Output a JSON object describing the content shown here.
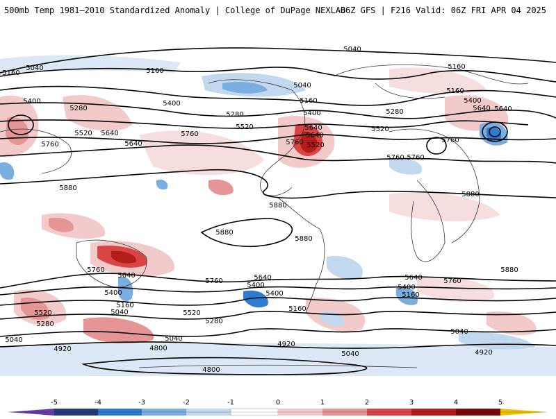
{
  "header": {
    "title_left": "500mb Temp 1981–2010 Standardized Anomaly | College of DuPage NEXLAB",
    "title_right": "06Z GFS | F216 Valid: 06Z FRI APR 04 2025"
  },
  "map": {
    "type": "global weather map",
    "field": "500mb temperature standardized anomaly (shaded)",
    "contours_field": "500mb geopotential height (black contours)",
    "contour_labels": [
      "5040",
      "5160",
      "5040",
      "5160",
      "5040",
      "5160",
      "5160",
      "5400",
      "5280",
      "5400",
      "5280",
      "5520",
      "5400",
      "5520",
      "5520",
      "5640",
      "5640",
      "5760",
      "5760",
      "5640",
      "5760",
      "5880",
      "5880",
      "5280",
      "5400",
      "5640",
      "5160",
      "5520",
      "5640",
      "5760",
      "5760",
      "5880",
      "5880",
      "5880",
      "5880",
      "5760",
      "5640",
      "5400",
      "5400",
      "5160",
      "5040",
      "5520",
      "5280",
      "5040",
      "5760",
      "5640",
      "5400",
      "5160",
      "5520",
      "5280",
      "5040",
      "4920",
      "4920",
      "4800",
      "4800",
      "5640",
      "5400",
      "5160",
      "5760",
      "5040",
      "4920",
      "5040",
      "5640",
      "5760"
    ]
  },
  "colorbar": {
    "ticks": [
      "-5",
      "-4",
      "-3",
      "-2",
      "-1",
      "0",
      "1",
      "2",
      "3",
      "4",
      "5"
    ],
    "colors": [
      "#6a3aa8",
      "#243b7a",
      "#2f7bd0",
      "#7aaede",
      "#c2d8ef",
      "#ffffff",
      "#f3caca",
      "#e59595",
      "#d94545",
      "#b51c1c",
      "#7a0808",
      "#f0c000"
    ]
  }
}
